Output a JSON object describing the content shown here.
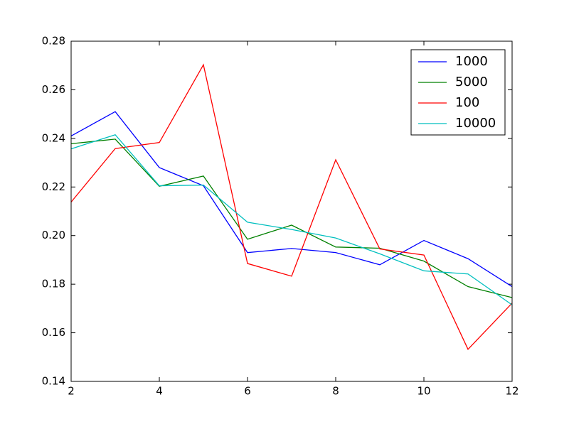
{
  "chart_data": {
    "type": "line",
    "x": [
      2,
      3,
      4,
      5,
      6,
      7,
      8,
      9,
      10,
      11,
      12
    ],
    "series": [
      {
        "name": "1000",
        "color": "#0000ff",
        "values": [
          0.241,
          0.251,
          0.228,
          0.2205,
          0.193,
          0.1947,
          0.193,
          0.188,
          0.198,
          0.1905,
          0.179
        ]
      },
      {
        "name": "5000",
        "color": "#008000",
        "values": [
          0.2378,
          0.2397,
          0.2203,
          0.2245,
          0.1985,
          0.2043,
          0.1953,
          0.1948,
          0.1895,
          0.179,
          0.1745
        ]
      },
      {
        "name": "100",
        "color": "#ff0000",
        "values": [
          0.2138,
          0.2358,
          0.2383,
          0.2703,
          0.1885,
          0.1833,
          0.2312,
          0.1945,
          0.192,
          0.1532,
          0.1722
        ]
      },
      {
        "name": "10000",
        "color": "#00bfbf",
        "values": [
          0.2357,
          0.2415,
          0.2205,
          0.2208,
          0.2055,
          0.2025,
          0.199,
          0.1925,
          0.1855,
          0.1842,
          0.1715
        ]
      }
    ],
    "xlim": [
      2,
      12
    ],
    "xticks": [
      2,
      4,
      6,
      8,
      10,
      12
    ],
    "ylim": [
      0.14,
      0.28
    ],
    "yticks": [
      0.14,
      0.16,
      0.18,
      {
        "value": 0.2,
        "label": "0.20"
      },
      0.22,
      0.24,
      0.26,
      0.28
    ],
    "legend": "upper-right"
  }
}
